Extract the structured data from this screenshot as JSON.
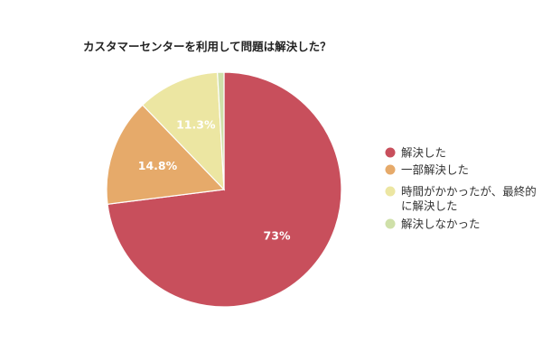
{
  "chart_data": {
    "type": "pie",
    "title": "カスタマーセンターを利用して問題は解決した？",
    "categories": [
      "解決した",
      "一部解決した",
      "時間がかかったが、最終的に解決した",
      "解決しなかった"
    ],
    "legend_lines": [
      [
        "解決した"
      ],
      [
        "一部解決した"
      ],
      [
        "時間がかかったが、最終的",
        "に解決した"
      ],
      [
        "解決しなかった"
      ]
    ],
    "values": [
      73,
      14.8,
      11.3,
      0.9
    ],
    "data_labels": [
      "73%",
      "14.8%",
      "11.3%",
      ""
    ],
    "colors": [
      "#c84f5c",
      "#e6aa6a",
      "#ece6a2",
      "#cfe0a9"
    ],
    "legend_position": "right",
    "start_angle": "12 o'clock",
    "direction": "clockwise"
  }
}
